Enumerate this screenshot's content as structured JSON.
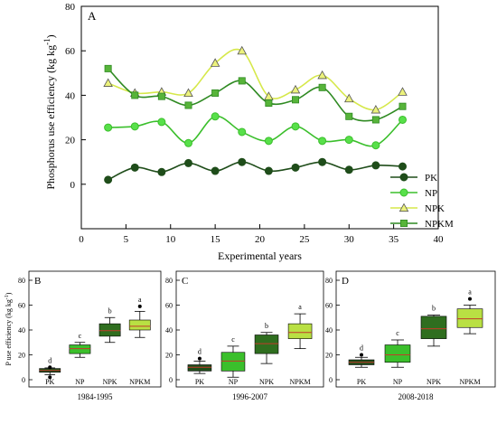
{
  "chart_data": [
    {
      "panel_letter": "A",
      "type": "line",
      "xlabel": "Experimental years",
      "ylabel": "Phosphorus use efficiency  (kg kg",
      "ylabel_sup": "-1",
      "ylabel_end": ")",
      "xlim": [
        0,
        40
      ],
      "ylim": [
        -20,
        80
      ],
      "x_ticks": [
        0,
        5,
        10,
        15,
        20,
        25,
        30,
        35,
        40
      ],
      "y_ticks": [
        0,
        20,
        40,
        60,
        80
      ],
      "grid": false,
      "legend_position": "bottom-right",
      "x": [
        3,
        6,
        9,
        12,
        15,
        18,
        21,
        24,
        27,
        30,
        33,
        36
      ],
      "series": [
        {
          "name": "PK",
          "marker": "circle",
          "color": "#1f4d1a",
          "fill": "#1f4d1a",
          "values": [
            2,
            7.5,
            5.5,
            9.5,
            6,
            10,
            6,
            7.5,
            10,
            6.5,
            8.5,
            8
          ]
        },
        {
          "name": "NP",
          "marker": "circle",
          "color": "#3bbf2c",
          "fill": "#58e04a",
          "values": [
            25.5,
            26,
            28,
            18.5,
            30.5,
            23.5,
            19.5,
            26,
            19.5,
            20,
            17.5,
            29
          ]
        },
        {
          "name": "NPK",
          "marker": "triangle",
          "color": "#d6e84a",
          "fill": "#ecf27c",
          "values": [
            45.5,
            41,
            41.5,
            41,
            54.5,
            60,
            39.5,
            42.5,
            49,
            38.5,
            33.5,
            41.5
          ]
        },
        {
          "name": "NPKM",
          "marker": "square",
          "color": "#2f8a22",
          "fill": "#57b43a",
          "values": [
            52,
            40,
            39.5,
            35.5,
            41,
            46.5,
            36.5,
            38,
            43.5,
            30.5,
            29,
            35
          ]
        }
      ]
    },
    {
      "panel_letter": "B",
      "type": "box",
      "ylabel": "P use efficiency  (kg kg",
      "ylabel_sup": "-1",
      "ylabel_end": ")",
      "period_label": "1984-1995",
      "ylim": [
        0,
        80
      ],
      "y_ticks": [
        0,
        20,
        40,
        60,
        80
      ],
      "categories": [
        "PK",
        "NP",
        "NPK",
        "NPKM"
      ],
      "boxes": [
        {
          "q1": 6,
          "median": 7.5,
          "q3": 9,
          "whisker_low": 4,
          "whisker_high": 9.5,
          "outliers": [
            2,
            10
          ],
          "letter": "d",
          "color": "#1f4d1a"
        },
        {
          "q1": 21,
          "median": 25,
          "q3": 28,
          "whisker_low": 18,
          "whisker_high": 30,
          "outliers": [],
          "letter": "c",
          "color": "#3bbf2c"
        },
        {
          "q1": 35,
          "median": 39.5,
          "q3": 45,
          "whisker_low": 30,
          "whisker_high": 50,
          "outliers": [],
          "letter": "b",
          "color": "#2f6e1f"
        },
        {
          "q1": 40,
          "median": 43,
          "q3": 48,
          "whisker_low": 34,
          "whisker_high": 55,
          "outliers": [
            59
          ],
          "letter": "a",
          "color": "#b9e043"
        }
      ]
    },
    {
      "panel_letter": "C",
      "type": "box",
      "period_label": "1996-2007",
      "ylim": [
        0,
        80
      ],
      "y_ticks": [
        0,
        20,
        40,
        60,
        80
      ],
      "categories": [
        "PK",
        "NP",
        "NPK",
        "NPKM"
      ],
      "boxes": [
        {
          "q1": 7,
          "median": 10,
          "q3": 12,
          "whisker_low": 5,
          "whisker_high": 15,
          "outliers": [
            17
          ],
          "letter": "d",
          "color": "#1f4d1a"
        },
        {
          "q1": 7,
          "median": 15,
          "q3": 22,
          "whisker_low": 2,
          "whisker_high": 27,
          "outliers": [],
          "letter": "c",
          "color": "#3bbf2c"
        },
        {
          "q1": 21,
          "median": 29,
          "q3": 36,
          "whisker_low": 13,
          "whisker_high": 38,
          "outliers": [],
          "letter": "b",
          "color": "#2f6e1f"
        },
        {
          "q1": 33,
          "median": 38,
          "q3": 45,
          "whisker_low": 25,
          "whisker_high": 53,
          "outliers": [],
          "letter": "a",
          "color": "#b9e043"
        }
      ]
    },
    {
      "panel_letter": "D",
      "type": "box",
      "period_label": "2008-2018",
      "ylim": [
        0,
        80
      ],
      "y_ticks": [
        0,
        20,
        40,
        60,
        80
      ],
      "categories": [
        "PK",
        "NP",
        "NPK",
        "NPKM"
      ],
      "boxes": [
        {
          "q1": 12,
          "median": 14,
          "q3": 16,
          "whisker_low": 10,
          "whisker_high": 18,
          "outliers": [
            20
          ],
          "letter": "d",
          "color": "#1f4d1a"
        },
        {
          "q1": 14,
          "median": 20,
          "q3": 28,
          "whisker_low": 10,
          "whisker_high": 32,
          "outliers": [],
          "letter": "c",
          "color": "#3bbf2c"
        },
        {
          "q1": 33,
          "median": 41,
          "q3": 51,
          "whisker_low": 27,
          "whisker_high": 52,
          "outliers": [],
          "letter": "b",
          "color": "#2f6e1f"
        },
        {
          "q1": 42,
          "median": 49,
          "q3": 57,
          "whisker_low": 37,
          "whisker_high": 60,
          "outliers": [
            65
          ],
          "letter": "a",
          "color": "#b9e043"
        }
      ]
    }
  ]
}
